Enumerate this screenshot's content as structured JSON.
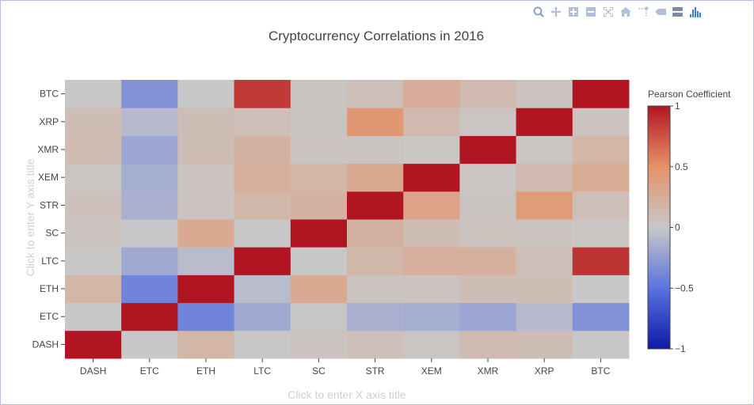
{
  "modebar": {
    "buttons": [
      {
        "name": "zoom-icon",
        "color": "#8aa4c8"
      },
      {
        "name": "pan-icon",
        "color": "#b0c0d8"
      },
      {
        "name": "zoom-in-icon",
        "color": "#b0c0d8"
      },
      {
        "name": "zoom-out-icon",
        "color": "#b0c0d8"
      },
      {
        "name": "autoscale-icon",
        "color": "#b0c0d8"
      },
      {
        "name": "home-icon",
        "color": "#b0c0d8"
      },
      {
        "name": "spike-lines-icon",
        "color": "#b0c0d8"
      },
      {
        "name": "hover-closest-icon",
        "color": "#b0c0d8"
      },
      {
        "name": "hover-compare-icon",
        "color": "#7e8ba3"
      },
      {
        "name": "plotly-logo-icon",
        "color": "#3f80c3"
      }
    ]
  },
  "chart_data": {
    "type": "heatmap",
    "title": "Cryptocurrency Correlations in 2016",
    "xlabel": "Click to enter X axis title",
    "ylabel": "Click to enter Y axis title",
    "x": [
      "DASH",
      "ETC",
      "ETH",
      "LTC",
      "SC",
      "STR",
      "XEM",
      "XMR",
      "XRP",
      "BTC"
    ],
    "y": [
      "DASH",
      "ETC",
      "ETH",
      "LTC",
      "SC",
      "STR",
      "XEM",
      "XMR",
      "XRP",
      "BTC"
    ],
    "z": [
      [
        1.0,
        0.0,
        0.17,
        0.01,
        0.05,
        0.08,
        0.03,
        0.12,
        0.1,
        0.01
      ],
      [
        0.0,
        1.0,
        -0.4,
        -0.18,
        -0.01,
        -0.14,
        -0.16,
        -0.2,
        -0.08,
        -0.32
      ],
      [
        0.17,
        -0.4,
        1.0,
        -0.07,
        0.29,
        0.05,
        0.05,
        0.1,
        0.1,
        0.0
      ],
      [
        0.01,
        -0.18,
        -0.07,
        1.0,
        0.0,
        0.16,
        0.24,
        0.22,
        0.09,
        0.88
      ],
      [
        0.05,
        -0.01,
        0.29,
        0.0,
        1.0,
        0.21,
        0.1,
        0.06,
        0.05,
        0.02
      ],
      [
        0.08,
        -0.14,
        0.05,
        0.16,
        0.21,
        1.0,
        0.34,
        0.04,
        0.42,
        0.09
      ],
      [
        0.03,
        -0.16,
        0.05,
        0.24,
        0.17,
        0.3,
        1.0,
        0.02,
        0.14,
        0.27
      ],
      [
        0.12,
        -0.2,
        0.1,
        0.2,
        0.05,
        0.04,
        0.02,
        1.0,
        0.03,
        0.17
      ],
      [
        0.1,
        -0.08,
        0.1,
        0.09,
        0.04,
        0.45,
        0.14,
        0.03,
        1.0,
        0.05
      ],
      [
        0.01,
        -0.32,
        0.0,
        0.85,
        0.04,
        0.09,
        0.25,
        0.13,
        0.05,
        1.0
      ]
    ],
    "zmin": -1,
    "zmax": 1,
    "colorscale": [
      [
        0.0,
        "#0d1aa8"
      ],
      [
        0.25,
        "#5a73e0"
      ],
      [
        0.5,
        "#c8c8c8"
      ],
      [
        0.75,
        "#e5926a"
      ],
      [
        1.0,
        "#b11522"
      ]
    ],
    "colorbar": {
      "title": "Pearson Coefficient",
      "ticks": [
        {
          "value": 1,
          "label": "1"
        },
        {
          "value": 0.5,
          "label": "0.5"
        },
        {
          "value": 0,
          "label": "0"
        },
        {
          "value": -0.5,
          "label": "−0.5"
        },
        {
          "value": -1,
          "label": "−1"
        }
      ]
    }
  }
}
